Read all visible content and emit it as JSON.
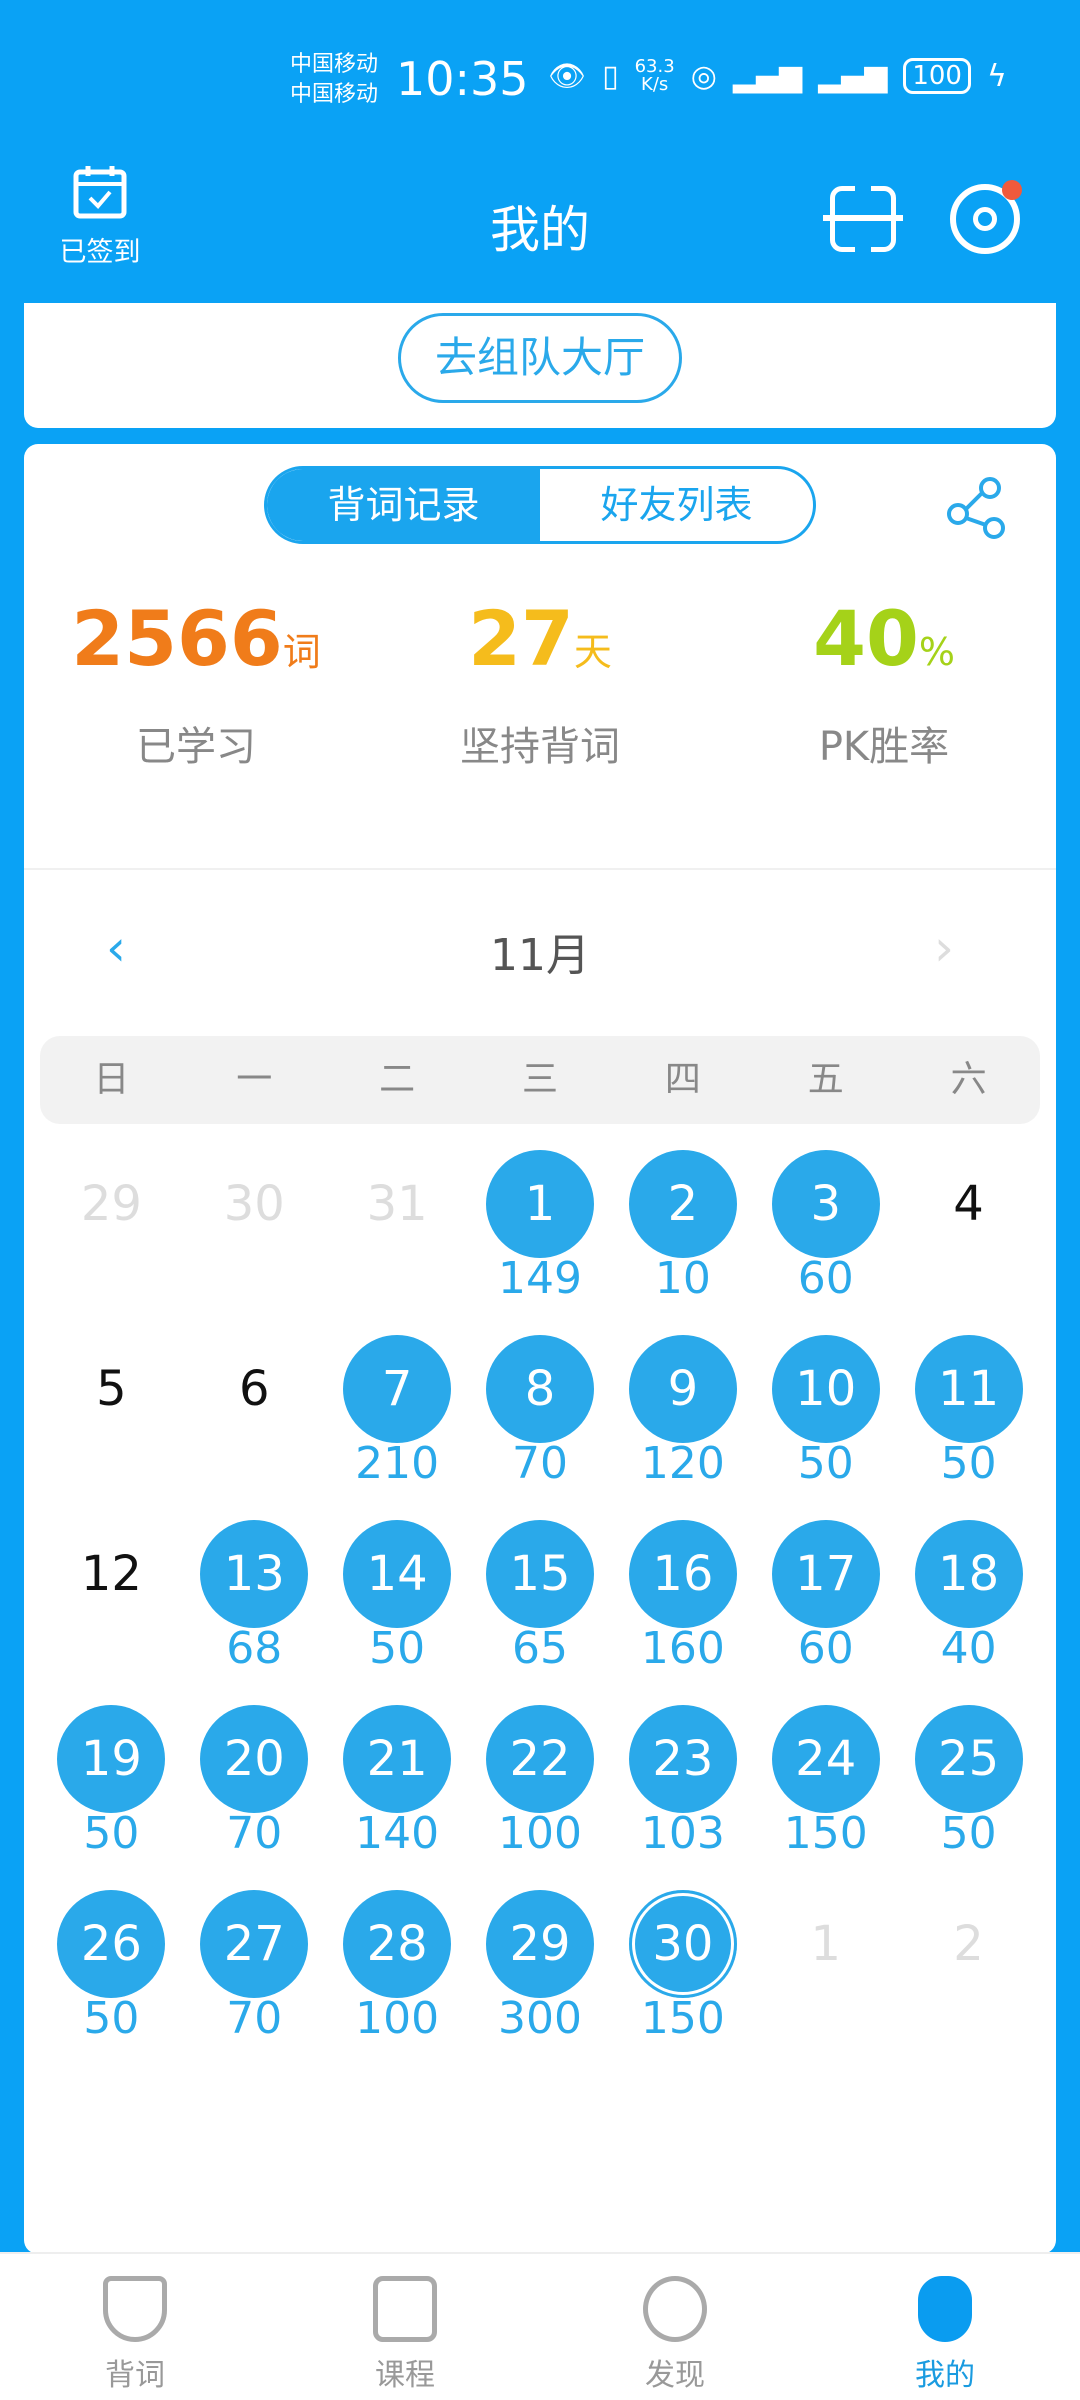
{
  "status_bar": {
    "carrier1": "中国移动",
    "carrier2": "中国移动",
    "time": "10:35",
    "speed_value": "63.3",
    "speed_unit": "K/s",
    "battery": "100"
  },
  "header": {
    "checkin_label": "已签到",
    "title": "我的",
    "icons": [
      "calendar-check-icon",
      "scan-icon",
      "settings-icon"
    ]
  },
  "team_button": "去组队大厅",
  "tabs": [
    {
      "label": "背词记录",
      "active": true
    },
    {
      "label": "好友列表",
      "active": false
    }
  ],
  "stats": [
    {
      "value": "2566",
      "unit": "词",
      "label": "已学习",
      "color": "#f07c1a"
    },
    {
      "value": "27",
      "unit": "天",
      "label": "坚持背词",
      "color": "#f5bc1c"
    },
    {
      "value": "40",
      "unit": "%",
      "label": "PK胜率",
      "color": "#a5d219"
    }
  ],
  "calendar": {
    "month": "11月",
    "weekdays": [
      "日",
      "一",
      "二",
      "三",
      "四",
      "五",
      "六"
    ],
    "weeks": [
      [
        {
          "d": "29",
          "o": 1
        },
        {
          "d": "30",
          "o": 1
        },
        {
          "d": "31",
          "o": 1
        },
        {
          "d": "1",
          "c": "149"
        },
        {
          "d": "2",
          "c": "10"
        },
        {
          "d": "3",
          "c": "60"
        },
        {
          "d": "4"
        }
      ],
      [
        {
          "d": "5"
        },
        {
          "d": "6"
        },
        {
          "d": "7",
          "c": "210"
        },
        {
          "d": "8",
          "c": "70"
        },
        {
          "d": "9",
          "c": "120"
        },
        {
          "d": "10",
          "c": "50"
        },
        {
          "d": "11",
          "c": "50"
        }
      ],
      [
        {
          "d": "12"
        },
        {
          "d": "13",
          "c": "68"
        },
        {
          "d": "14",
          "c": "50"
        },
        {
          "d": "15",
          "c": "65"
        },
        {
          "d": "16",
          "c": "160"
        },
        {
          "d": "17",
          "c": "60"
        },
        {
          "d": "18",
          "c": "40"
        }
      ],
      [
        {
          "d": "19",
          "c": "50"
        },
        {
          "d": "20",
          "c": "70"
        },
        {
          "d": "21",
          "c": "140"
        },
        {
          "d": "22",
          "c": "100"
        },
        {
          "d": "23",
          "c": "103"
        },
        {
          "d": "24",
          "c": "150"
        },
        {
          "d": "25",
          "c": "50"
        }
      ],
      [
        {
          "d": "26",
          "c": "50"
        },
        {
          "d": "27",
          "c": "70"
        },
        {
          "d": "28",
          "c": "100"
        },
        {
          "d": "29",
          "c": "300"
        },
        {
          "d": "30",
          "c": "150",
          "t": 1
        },
        {
          "d": "1",
          "o": 1
        },
        {
          "d": "2",
          "o": 1
        }
      ]
    ]
  },
  "bottom_nav": [
    {
      "label": "背词"
    },
    {
      "label": "课程"
    },
    {
      "label": "发现"
    },
    {
      "label": "我的",
      "active": true
    }
  ],
  "colors": {
    "primary": "#0aa2f5",
    "studied": "#2aa9ea"
  }
}
